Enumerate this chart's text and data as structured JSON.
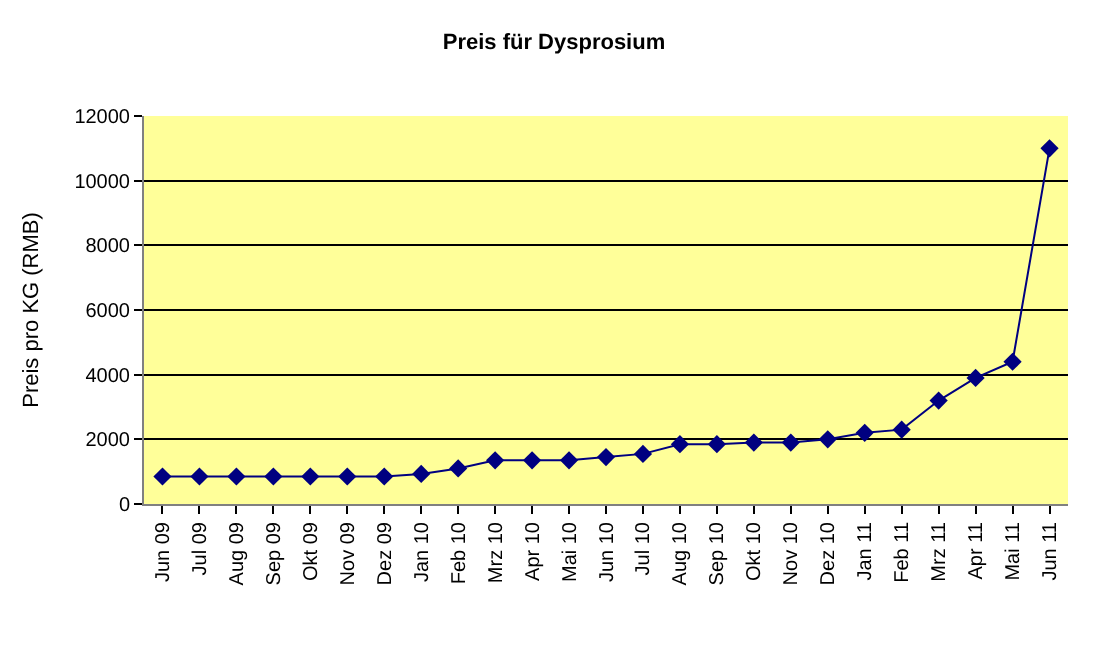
{
  "chart_data": {
    "type": "line",
    "title": "Preis für Dysprosium",
    "ylabel": "Preis pro KG (RMB)",
    "categories": [
      "Jun 09",
      "Jul 09",
      "Aug 09",
      "Sep 09",
      "Okt 09",
      "Nov 09",
      "Dez 09",
      "Jan 10",
      "Feb 10",
      "Mrz 10",
      "Apr 10",
      "Mai 10",
      "Jun 10",
      "Jul 10",
      "Aug 10",
      "Sep 10",
      "Okt 10",
      "Nov 10",
      "Dez 10",
      "Jan 11",
      "Feb 11",
      "Mrz 11",
      "Apr 11",
      "Mai 11",
      "Jun 11"
    ],
    "series": [
      {
        "color": "#000080",
        "values": [
          850,
          850,
          850,
          850,
          850,
          850,
          850,
          930,
          1100,
          1350,
          1350,
          1350,
          1450,
          1550,
          1850,
          1850,
          1900,
          1900,
          2000,
          2200,
          2300,
          3200,
          3900,
          4400,
          11000
        ]
      }
    ],
    "ylim": [
      0,
      12000
    ],
    "yticks": [
      0,
      2000,
      4000,
      6000,
      8000,
      10000,
      12000
    ],
    "grid": "y",
    "marker": "diamond",
    "line_style": "solid",
    "legend": false
  }
}
